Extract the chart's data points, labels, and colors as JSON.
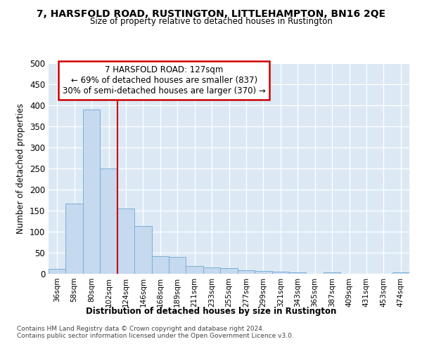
{
  "title": "7, HARSFOLD ROAD, RUSTINGTON, LITTLEHAMPTON, BN16 2QE",
  "subtitle": "Size of property relative to detached houses in Rustington",
  "xlabel": "Distribution of detached houses by size in Rustington",
  "ylabel": "Number of detached properties",
  "categories": [
    "36sqm",
    "58sqm",
    "80sqm",
    "102sqm",
    "124sqm",
    "146sqm",
    "168sqm",
    "189sqm",
    "211sqm",
    "233sqm",
    "255sqm",
    "277sqm",
    "299sqm",
    "321sqm",
    "343sqm",
    "365sqm",
    "387sqm",
    "409sqm",
    "431sqm",
    "453sqm",
    "474sqm"
  ],
  "values": [
    12,
    166,
    390,
    250,
    155,
    113,
    42,
    40,
    18,
    15,
    13,
    8,
    7,
    5,
    3,
    0,
    3,
    0,
    0,
    0,
    4
  ],
  "bar_color": "#c5d9ef",
  "bar_edge_color": "#7bafd4",
  "vline_x_index": 4,
  "vline_color": "#cc0000",
  "annotation_text": "7 HARSFOLD ROAD: 127sqm\n← 69% of detached houses are smaller (837)\n30% of semi-detached houses are larger (370) →",
  "annotation_box_color": "#ffffff",
  "annotation_box_edge_color": "#cc0000",
  "ylim": [
    0,
    500
  ],
  "yticks": [
    0,
    50,
    100,
    150,
    200,
    250,
    300,
    350,
    400,
    450,
    500
  ],
  "footer": "Contains HM Land Registry data © Crown copyright and database right 2024.\nContains public sector information licensed under the Open Government Licence v3.0.",
  "fig_background_color": "#ffffff",
  "plot_background_color": "#dce9f5"
}
